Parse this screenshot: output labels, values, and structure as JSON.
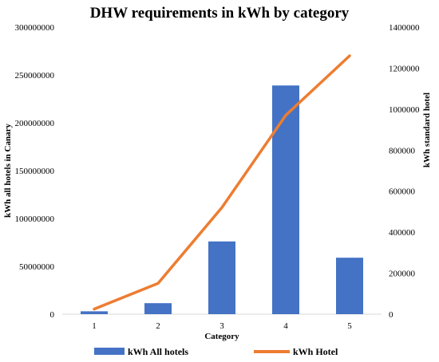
{
  "chart_data": {
    "type": "bar",
    "title": "DHW requirements in kWh by category",
    "xlabel": "Category",
    "ylabel_left": "kWh all hotels in Canary",
    "ylabel_right": "kWh standard hotel",
    "categories": [
      "1",
      "2",
      "3",
      "4",
      "5"
    ],
    "y_left_lim": [
      0,
      300000000
    ],
    "y_left_ticks": [
      "0",
      "50000000",
      "100000000",
      "150000000",
      "200000000",
      "250000000",
      "300000000"
    ],
    "y_right_lim": [
      0,
      1400000
    ],
    "y_right_ticks": [
      "0",
      "200000",
      "400000",
      "600000",
      "800000",
      "1000000",
      "1200000",
      "1400000"
    ],
    "grid": false,
    "legend_position": "bottom",
    "series": [
      {
        "name": "kWh All hotels",
        "type": "bar",
        "axis": "left",
        "color": "#4472C4",
        "values": [
          3000000,
          11500000,
          76000000,
          239000000,
          59000000
        ]
      },
      {
        "name": "kWh Hotel",
        "type": "line",
        "axis": "right",
        "color": "#ED7D31",
        "values": [
          25000,
          150000,
          520000,
          970000,
          1260000
        ]
      }
    ]
  }
}
